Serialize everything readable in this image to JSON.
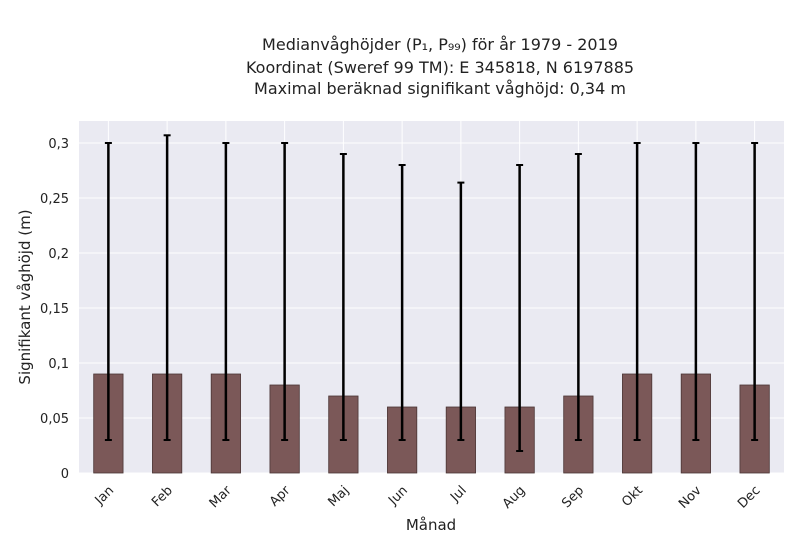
{
  "chart_data": {
    "type": "bar",
    "title_lines": [
      "Medianvåghöjder (P₁, P₉₉) för år 1979 - 2019",
      "Koordinat (Sweref 99 TM): E 345818, N 6197885",
      "Maximal beräknad signifikant våghöjd: 0,34 m"
    ],
    "xlabel": "Månad",
    "ylabel": "Signifikant våghöjd (m)",
    "categories": [
      "Jan",
      "Feb",
      "Mar",
      "Apr",
      "Maj",
      "Jun",
      "Jul",
      "Aug",
      "Sep",
      "Okt",
      "Nov",
      "Dec"
    ],
    "values": [
      0.09,
      0.09,
      0.09,
      0.08,
      0.07,
      0.06,
      0.06,
      0.06,
      0.07,
      0.09,
      0.09,
      0.08
    ],
    "p1": [
      0.03,
      0.03,
      0.03,
      0.03,
      0.03,
      0.03,
      0.03,
      0.02,
      0.03,
      0.03,
      0.03,
      0.03
    ],
    "p99": [
      0.3,
      0.307,
      0.3,
      0.3,
      0.29,
      0.28,
      0.264,
      0.28,
      0.29,
      0.3,
      0.3,
      0.3
    ],
    "yticks": [
      0,
      0.05,
      0.1,
      0.15,
      0.2,
      0.25,
      0.3
    ],
    "ytick_labels": [
      "0",
      "0,05",
      "0,1",
      "0,15",
      "0,2",
      "0,25",
      "0,3"
    ],
    "ylim": [
      0,
      0.32
    ],
    "grid": true,
    "colors": {
      "bar": "#7b5858",
      "bar_edge": "#4a3535",
      "errorbar": "#000000",
      "plot_bg": "#eaeaf2",
      "grid": "#ffffff"
    }
  }
}
